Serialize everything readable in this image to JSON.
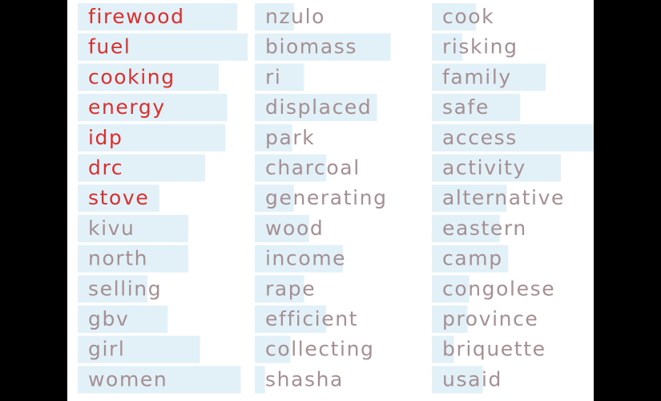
{
  "chart_data": {
    "type": "bar",
    "columns": [
      {
        "words": [
          "firewood",
          "fuel",
          "cooking",
          "energy",
          "idp",
          "drc",
          "stove",
          "kivu",
          "north",
          "selling",
          "gbv",
          "girl",
          "women"
        ],
        "values": [
          0.94,
          1.0,
          0.83,
          0.88,
          0.87,
          0.75,
          0.48,
          0.65,
          0.65,
          0.41,
          0.53,
          0.72,
          0.96
        ],
        "highlight": [
          true,
          true,
          true,
          true,
          true,
          true,
          true,
          false,
          false,
          false,
          false,
          false,
          false
        ]
      },
      {
        "words": [
          "nzulo",
          "biomass",
          "ri",
          "displaced",
          "park",
          "charcoal",
          "generating",
          "wood",
          "income",
          "rape",
          "efficient",
          "collecting",
          "shasha"
        ],
        "values": [
          0.23,
          0.8,
          0.29,
          0.72,
          0.22,
          0.42,
          0.23,
          0.32,
          0.52,
          0.29,
          0.42,
          0.21,
          0.06
        ],
        "highlight": [
          false,
          false,
          false,
          false,
          false,
          false,
          false,
          false,
          false,
          false,
          false,
          false,
          false
        ]
      },
      {
        "words": [
          "cook",
          "risking",
          "family",
          "safe",
          "access",
          "activity",
          "alternative",
          "eastern",
          "camp",
          "congolese",
          "province",
          "briquette",
          "usaid"
        ],
        "values": [
          0.26,
          0.18,
          0.67,
          0.52,
          1.0,
          0.76,
          0.44,
          0.4,
          0.45,
          0.22,
          0.21,
          0.13,
          0.3
        ],
        "highlight": [
          false,
          false,
          false,
          false,
          false,
          false,
          false,
          false,
          false,
          false,
          false,
          false,
          false
        ]
      }
    ]
  },
  "colors": {
    "highlight_text": "#d9302e",
    "normal_text": "#a48f93",
    "bar": "#e2f0f8",
    "background": "#ffffff",
    "frame": "#000000"
  }
}
